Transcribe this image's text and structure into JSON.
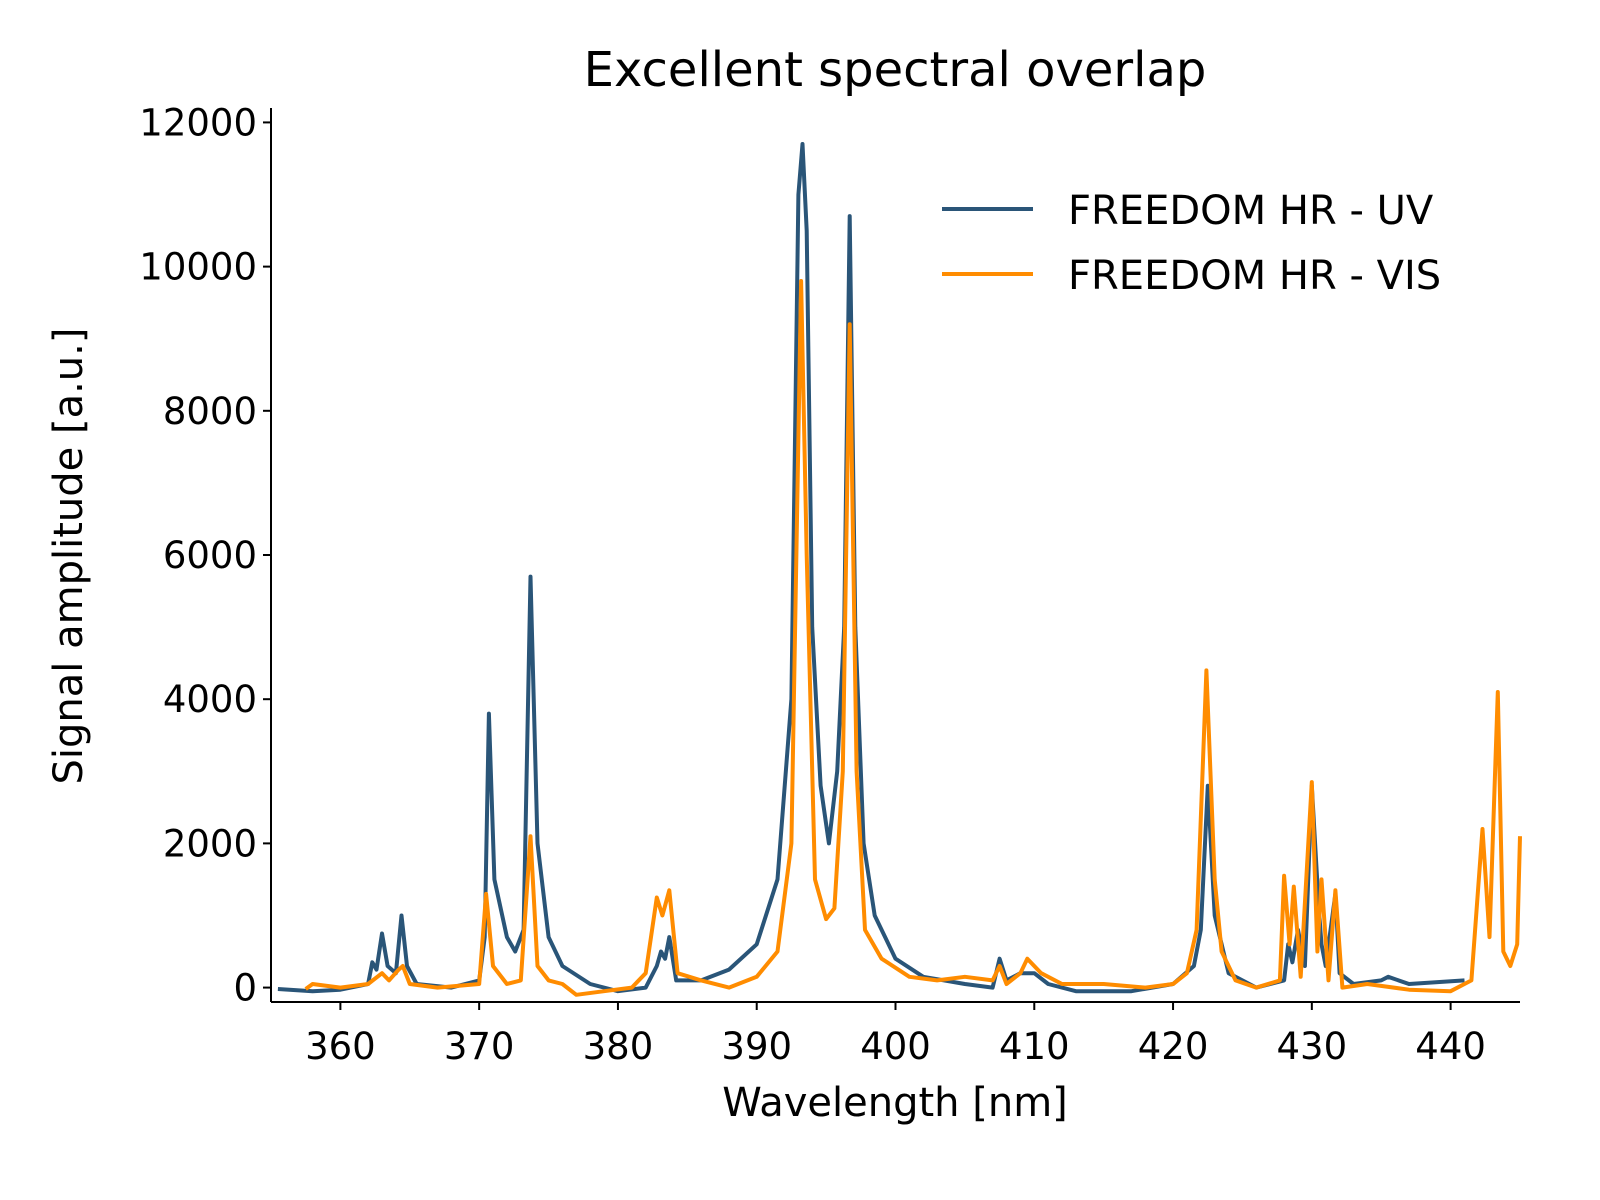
{
  "chart_data": {
    "type": "line",
    "title": "Excellent spectral overlap",
    "xlabel": "Wavelength [nm]",
    "ylabel": "Signal amplitude [a.u.]",
    "xlim": [
      355,
      445
    ],
    "ylim": [
      -200,
      12200
    ],
    "xticks": [
      360,
      370,
      380,
      390,
      400,
      410,
      420,
      430,
      440
    ],
    "yticks": [
      0,
      2000,
      4000,
      6000,
      8000,
      10000,
      12000
    ],
    "grid": false,
    "legend": "top-right",
    "series": [
      {
        "name": "FREEDOM HR - UV",
        "color": "#2a5578",
        "points": [
          [
            355.5,
            -20
          ],
          [
            358,
            -50
          ],
          [
            360,
            -30
          ],
          [
            362,
            50
          ],
          [
            362.3,
            350
          ],
          [
            362.6,
            250
          ],
          [
            363,
            750
          ],
          [
            363.4,
            300
          ],
          [
            364,
            200
          ],
          [
            364.4,
            1000
          ],
          [
            364.8,
            300
          ],
          [
            365.5,
            50
          ],
          [
            368,
            0
          ],
          [
            370,
            100
          ],
          [
            370.4,
            700
          ],
          [
            370.7,
            3800
          ],
          [
            371.1,
            1500
          ],
          [
            372,
            700
          ],
          [
            372.6,
            500
          ],
          [
            373.2,
            800
          ],
          [
            373.7,
            5700
          ],
          [
            374.2,
            2000
          ],
          [
            375,
            700
          ],
          [
            376,
            300
          ],
          [
            378,
            50
          ],
          [
            380,
            -50
          ],
          [
            382,
            0
          ],
          [
            382.8,
            300
          ],
          [
            383.1,
            500
          ],
          [
            383.4,
            400
          ],
          [
            383.7,
            700
          ],
          [
            384.2,
            100
          ],
          [
            386,
            100
          ],
          [
            388,
            250
          ],
          [
            390,
            600
          ],
          [
            391.5,
            1500
          ],
          [
            392.5,
            4000
          ],
          [
            393,
            11000
          ],
          [
            393.3,
            11700
          ],
          [
            393.6,
            10500
          ],
          [
            394,
            5000
          ],
          [
            394.6,
            2800
          ],
          [
            395.2,
            2000
          ],
          [
            395.8,
            3000
          ],
          [
            396.3,
            5000
          ],
          [
            396.7,
            10700
          ],
          [
            397.1,
            5000
          ],
          [
            397.7,
            2000
          ],
          [
            398.5,
            1000
          ],
          [
            400,
            400
          ],
          [
            402,
            150
          ],
          [
            405,
            50
          ],
          [
            407,
            0
          ],
          [
            407.5,
            400
          ],
          [
            408,
            100
          ],
          [
            409,
            200
          ],
          [
            410,
            200
          ],
          [
            411,
            50
          ],
          [
            413,
            -50
          ],
          [
            417,
            -50
          ],
          [
            420,
            50
          ],
          [
            421.5,
            300
          ],
          [
            422,
            800
          ],
          [
            422.5,
            2800
          ],
          [
            423,
            1000
          ],
          [
            424,
            200
          ],
          [
            426,
            0
          ],
          [
            428,
            100
          ],
          [
            428.3,
            600
          ],
          [
            428.6,
            350
          ],
          [
            429,
            800
          ],
          [
            429.5,
            300
          ],
          [
            430,
            2800
          ],
          [
            430.5,
            1100
          ],
          [
            430.7,
            600
          ],
          [
            431,
            300
          ],
          [
            431.7,
            1300
          ],
          [
            432,
            200
          ],
          [
            433,
            50
          ],
          [
            435,
            100
          ],
          [
            435.5,
            150
          ],
          [
            437,
            50
          ],
          [
            441,
            100
          ]
        ]
      },
      {
        "name": "FREEDOM HR - VIS",
        "color": "#ff8c00",
        "points": [
          [
            357.5,
            -20
          ],
          [
            358,
            50
          ],
          [
            360,
            0
          ],
          [
            362,
            50
          ],
          [
            363,
            200
          ],
          [
            363.5,
            100
          ],
          [
            364.2,
            250
          ],
          [
            364.5,
            300
          ],
          [
            365,
            50
          ],
          [
            367,
            0
          ],
          [
            370,
            50
          ],
          [
            370.5,
            1300
          ],
          [
            371,
            300
          ],
          [
            372,
            50
          ],
          [
            373,
            100
          ],
          [
            373.7,
            2100
          ],
          [
            374.2,
            300
          ],
          [
            375,
            100
          ],
          [
            376,
            50
          ],
          [
            377,
            -100
          ],
          [
            379,
            -50
          ],
          [
            381,
            0
          ],
          [
            382,
            200
          ],
          [
            382.8,
            1250
          ],
          [
            383.2,
            1000
          ],
          [
            383.7,
            1350
          ],
          [
            384.3,
            200
          ],
          [
            386,
            100
          ],
          [
            388,
            0
          ],
          [
            390,
            150
          ],
          [
            391.5,
            500
          ],
          [
            392.5,
            2000
          ],
          [
            393.2,
            9800
          ],
          [
            393.6,
            6000
          ],
          [
            394.2,
            1500
          ],
          [
            395,
            950
          ],
          [
            395.6,
            1100
          ],
          [
            396.2,
            3000
          ],
          [
            396.7,
            9200
          ],
          [
            397.2,
            3000
          ],
          [
            397.8,
            800
          ],
          [
            399,
            400
          ],
          [
            401,
            150
          ],
          [
            403,
            100
          ],
          [
            405,
            150
          ],
          [
            407,
            100
          ],
          [
            407.5,
            300
          ],
          [
            408,
            50
          ],
          [
            409,
            200
          ],
          [
            409.5,
            400
          ],
          [
            410.5,
            200
          ],
          [
            412,
            50
          ],
          [
            415,
            50
          ],
          [
            418,
            0
          ],
          [
            420,
            50
          ],
          [
            421,
            200
          ],
          [
            421.7,
            800
          ],
          [
            422.4,
            4400
          ],
          [
            423,
            1500
          ],
          [
            423.5,
            500
          ],
          [
            424.5,
            100
          ],
          [
            426,
            0
          ],
          [
            427.7,
            100
          ],
          [
            428,
            1550
          ],
          [
            428.4,
            600
          ],
          [
            428.7,
            1400
          ],
          [
            429.2,
            150
          ],
          [
            430,
            2850
          ],
          [
            430.4,
            500
          ],
          [
            430.7,
            1500
          ],
          [
            431.2,
            100
          ],
          [
            431.7,
            1350
          ],
          [
            432.2,
            0
          ],
          [
            434,
            50
          ],
          [
            437,
            -30
          ],
          [
            440,
            -50
          ],
          [
            441.5,
            100
          ],
          [
            442.3,
            2200
          ],
          [
            442.8,
            700
          ],
          [
            443.4,
            4100
          ],
          [
            443.8,
            500
          ],
          [
            444.3,
            300
          ],
          [
            444.8,
            600
          ],
          [
            445,
            2100
          ]
        ]
      }
    ]
  }
}
